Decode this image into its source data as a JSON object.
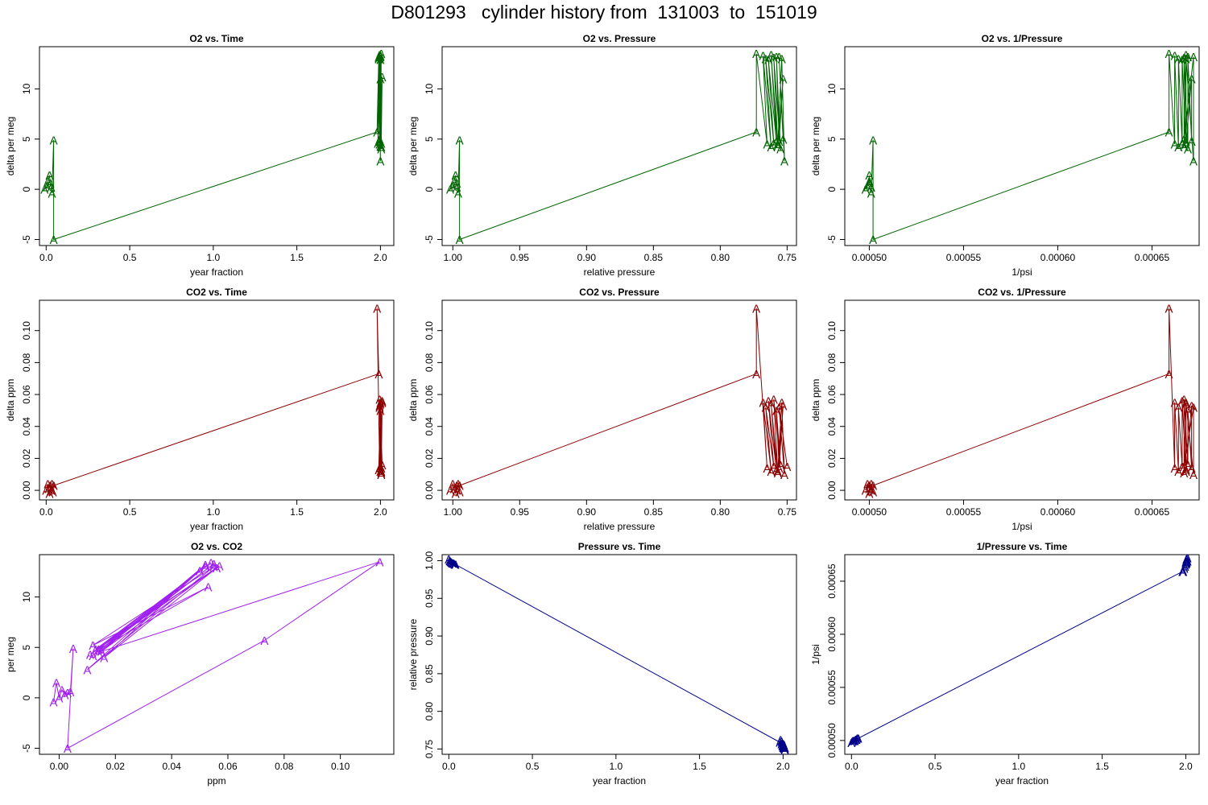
{
  "title": "D801293   cylinder history from  131003  to  151019",
  "colors": {
    "o2": "#006400",
    "co2": "#8b0000",
    "o2co2": "#a020f0",
    "pressure": "#00008b"
  },
  "chart_data": [
    {
      "id": "o2-time",
      "type": "line",
      "title": "O2 vs. Time",
      "xlabel": "year fraction",
      "ylabel": "delta per meg",
      "xlim": [
        -0.04,
        2.08
      ],
      "ylim": [
        -5.6,
        14.2
      ],
      "reverse_x": false,
      "color": "o2",
      "xticks": [
        "0.0",
        "0.5",
        "1.0",
        "1.5",
        "2.0"
      ],
      "yticks": [
        "-5",
        "0",
        "5",
        "10"
      ],
      "marker": "A",
      "series": [
        {
          "x": [
            -0.01,
            0.005,
            0.01,
            0.02,
            0.025,
            0.03,
            0.035,
            0.045,
            0.045,
            1.98,
            1.99,
            1.995,
            2.0,
            2.005,
            1.99,
            1.985,
            2.0,
            1.995,
            2.005,
            2.0,
            1.99,
            2.0,
            2.005,
            1.995,
            2.0,
            1.99,
            2.005,
            2.01,
            1.995,
            2.0
          ],
          "y": [
            0.0,
            0.3,
            0.8,
            1.4,
            0.6,
            0.2,
            -0.4,
            4.9,
            -5.0,
            5.7,
            13.2,
            4.5,
            13.3,
            4.2,
            13.0,
            4.6,
            12.9,
            4.8,
            13.5,
            4.3,
            13.1,
            11.0,
            4.0,
            13.4,
            2.8,
            13.0,
            4.6,
            11.2,
            5.0,
            13.2
          ]
        }
      ]
    },
    {
      "id": "o2-pressure",
      "type": "line",
      "title": "O2 vs. Pressure",
      "xlabel": "relative pressure",
      "ylabel": "delta per meg",
      "xlim": [
        1.008,
        0.743
      ],
      "ylim": [
        -5.6,
        14.2
      ],
      "reverse_x": true,
      "color": "o2",
      "xticks": [
        "1.00",
        "0.95",
        "0.90",
        "0.85",
        "0.80",
        "0.75"
      ],
      "yticks": [
        "-5",
        "0",
        "5",
        "10"
      ],
      "marker": "A",
      "series": [
        {
          "x": [
            1.002,
            1.0,
            0.999,
            0.998,
            0.997,
            0.997,
            0.996,
            0.995,
            0.995,
            0.773,
            0.773,
            0.765,
            0.768,
            0.762,
            0.766,
            0.76,
            0.764,
            0.758,
            0.762,
            0.757,
            0.76,
            0.755,
            0.758,
            0.756,
            0.753,
            0.757,
            0.754,
            0.752,
            0.756,
            0.753
          ],
          "y": [
            0.0,
            0.3,
            0.8,
            1.4,
            0.6,
            0.2,
            -0.4,
            4.9,
            -5.0,
            5.7,
            13.5,
            4.5,
            13.3,
            4.2,
            13.0,
            4.6,
            12.9,
            4.8,
            13.4,
            4.3,
            13.1,
            4.0,
            13.2,
            4.8,
            11.0,
            4.5,
            13.0,
            2.8,
            13.2,
            5.0
          ]
        }
      ]
    },
    {
      "id": "o2-inv-pressure",
      "type": "line",
      "title": "O2 vs. 1/Pressure",
      "xlabel": "1/psi",
      "ylabel": "delta per meg",
      "xlim": [
        0.000487,
        0.000675
      ],
      "ylim": [
        -5.6,
        14.2
      ],
      "reverse_x": false,
      "color": "o2",
      "xticks": [
        "0.00050",
        "0.00055",
        "0.00060",
        "0.00065"
      ],
      "yticks": [
        "-5",
        "0",
        "5",
        "10"
      ],
      "marker": "A",
      "series": [
        {
          "x": [
            0.000498,
            0.000499,
            0.0005,
            0.0005,
            0.0005,
            0.000501,
            0.000501,
            0.000502,
            0.000502,
            0.000659,
            0.000659,
            0.000662,
            0.000662,
            0.000664,
            0.000664,
            0.000666,
            0.000666,
            0.000668,
            0.000668,
            0.000667,
            0.000667,
            0.000669,
            0.000669,
            0.000671,
            0.000671,
            0.000668,
            0.000668,
            0.000672,
            0.000672,
            0.000667
          ],
          "y": [
            0.0,
            0.3,
            0.8,
            1.4,
            0.6,
            0.2,
            -0.4,
            4.9,
            -5.0,
            5.7,
            13.5,
            4.5,
            13.3,
            4.2,
            13.0,
            4.6,
            12.9,
            4.8,
            13.4,
            4.3,
            13.1,
            4.0,
            13.2,
            4.8,
            11.0,
            4.5,
            13.0,
            2.8,
            13.2,
            5.0
          ]
        }
      ]
    },
    {
      "id": "co2-time",
      "type": "line",
      "title": "CO2 vs. Time",
      "xlabel": "year fraction",
      "ylabel": "delta ppm",
      "xlim": [
        -0.04,
        2.08
      ],
      "ylim": [
        -0.006,
        0.119
      ],
      "reverse_x": false,
      "color": "co2",
      "xticks": [
        "0.0",
        "0.5",
        "1.0",
        "1.5",
        "2.0"
      ],
      "yticks": [
        "0.00",
        "0.02",
        "0.04",
        "0.06",
        "0.08",
        "0.10"
      ],
      "marker": "A",
      "series": [
        {
          "x": [
            0.0,
            0.01,
            0.015,
            0.02,
            0.025,
            0.03,
            0.035,
            0.04,
            0.045,
            1.99,
            1.98,
            1.995,
            2.0,
            2.005,
            1.995,
            2.0,
            2.01,
            1.99,
            2.0,
            2.005,
            1.995,
            2.01,
            2.0,
            2.005,
            1.995,
            2.0,
            2.01,
            2.005,
            1.995,
            2.0
          ],
          "y": [
            0.0,
            0.004,
            0.001,
            -0.002,
            0.003,
            0.0,
            0.004,
            -0.001,
            0.003,
            0.073,
            0.114,
            0.014,
            0.055,
            0.012,
            0.052,
            0.015,
            0.056,
            0.013,
            0.054,
            0.011,
            0.057,
            0.016,
            0.05,
            0.014,
            0.053,
            0.012,
            0.055,
            0.01,
            0.052,
            0.015
          ]
        }
      ]
    },
    {
      "id": "co2-pressure",
      "type": "line",
      "title": "CO2 vs. Pressure",
      "xlabel": "relative pressure",
      "ylabel": "delta ppm",
      "xlim": [
        1.008,
        0.743
      ],
      "ylim": [
        -0.006,
        0.119
      ],
      "reverse_x": true,
      "color": "co2",
      "xticks": [
        "1.00",
        "0.95",
        "0.90",
        "0.85",
        "0.80",
        "0.75"
      ],
      "yticks": [
        "0.00",
        "0.02",
        "0.04",
        "0.06",
        "0.08",
        "0.10"
      ],
      "marker": "A",
      "series": [
        {
          "x": [
            1.002,
            1.0,
            0.999,
            0.998,
            0.997,
            0.997,
            0.996,
            0.995,
            0.995,
            0.773,
            0.773,
            0.765,
            0.768,
            0.762,
            0.766,
            0.76,
            0.764,
            0.758,
            0.762,
            0.757,
            0.76,
            0.755,
            0.758,
            0.756,
            0.753,
            0.757,
            0.754,
            0.752,
            0.756,
            0.75
          ],
          "y": [
            0.0,
            0.004,
            0.001,
            -0.002,
            0.003,
            0.0,
            0.004,
            -0.001,
            0.003,
            0.073,
            0.114,
            0.014,
            0.055,
            0.012,
            0.052,
            0.015,
            0.056,
            0.013,
            0.054,
            0.011,
            0.057,
            0.016,
            0.05,
            0.014,
            0.053,
            0.012,
            0.055,
            0.01,
            0.052,
            0.015
          ]
        }
      ]
    },
    {
      "id": "co2-inv-pressure",
      "type": "line",
      "title": "CO2 vs. 1/Pressure",
      "xlabel": "1/psi",
      "ylabel": "delta ppm",
      "xlim": [
        0.000487,
        0.000675
      ],
      "ylim": [
        -0.006,
        0.119
      ],
      "reverse_x": false,
      "color": "co2",
      "xticks": [
        "0.00050",
        "0.00055",
        "0.00060",
        "0.00065"
      ],
      "yticks": [
        "0.00",
        "0.02",
        "0.04",
        "0.06",
        "0.08",
        "0.10"
      ],
      "marker": "A",
      "series": [
        {
          "x": [
            0.000498,
            0.000499,
            0.0005,
            0.0005,
            0.0005,
            0.000501,
            0.000501,
            0.000502,
            0.000502,
            0.000659,
            0.000659,
            0.000662,
            0.000662,
            0.000664,
            0.000664,
            0.000666,
            0.000666,
            0.000668,
            0.000668,
            0.000667,
            0.000667,
            0.000669,
            0.000669,
            0.000671,
            0.000671,
            0.000668,
            0.000668,
            0.000672,
            0.000672,
            0.000667
          ],
          "y": [
            0.0,
            0.004,
            0.001,
            -0.002,
            0.003,
            0.0,
            0.004,
            -0.001,
            0.003,
            0.073,
            0.114,
            0.014,
            0.055,
            0.012,
            0.052,
            0.015,
            0.056,
            0.013,
            0.054,
            0.011,
            0.057,
            0.016,
            0.05,
            0.014,
            0.053,
            0.012,
            0.055,
            0.01,
            0.052,
            0.015
          ]
        }
      ]
    },
    {
      "id": "o2-co2",
      "type": "line",
      "title": "O2 vs. CO2",
      "xlabel": "ppm",
      "ylabel": "per meg",
      "xlim": [
        -0.007,
        0.119
      ],
      "ylim": [
        -5.6,
        14.2
      ],
      "reverse_x": false,
      "color": "o2co2",
      "xticks": [
        "0.00",
        "0.02",
        "0.04",
        "0.06",
        "0.08",
        "0.10"
      ],
      "yticks": [
        "-5",
        "0",
        "5",
        "10"
      ],
      "marker": "A",
      "series": [
        {
          "x": [
            -0.002,
            -0.001,
            0.0,
            0.001,
            0.002,
            0.003,
            0.004,
            0.005,
            0.003,
            0.073,
            0.114,
            0.014,
            0.055,
            0.012,
            0.052,
            0.015,
            0.056,
            0.013,
            0.054,
            0.011,
            0.057,
            0.016,
            0.05,
            0.014,
            0.053,
            0.012,
            0.055,
            0.01,
            0.052,
            0.015
          ],
          "y": [
            -0.4,
            1.5,
            0.0,
            0.8,
            0.3,
            0.5,
            0.6,
            4.9,
            -5.0,
            5.7,
            13.5,
            4.5,
            13.3,
            4.2,
            13.0,
            4.6,
            12.9,
            4.8,
            13.4,
            4.3,
            13.1,
            4.0,
            12.6,
            4.8,
            11.0,
            5.2,
            13.0,
            2.8,
            13.2,
            4.6
          ]
        }
      ]
    },
    {
      "id": "pressure-time",
      "type": "line",
      "title": "Pressure vs. Time",
      "xlabel": "year fraction",
      "ylabel": "relative pressure",
      "xlim": [
        -0.04,
        2.08
      ],
      "ylim": [
        0.743,
        1.008
      ],
      "reverse_x": false,
      "color": "pressure",
      "xticks": [
        "0.0",
        "0.5",
        "1.0",
        "1.5",
        "2.0"
      ],
      "yticks": [
        "0.75",
        "0.80",
        "0.85",
        "0.90",
        "0.95",
        "1.00"
      ],
      "marker": "A",
      "series": [
        {
          "x": [
            0.0,
            0.005,
            0.01,
            0.015,
            0.02,
            0.025,
            0.03,
            0.035,
            0.04,
            1.98,
            1.985,
            1.99,
            1.99,
            1.995,
            1.995,
            2.0,
            2.0,
            2.005,
            2.005,
            2.0,
            2.0,
            2.01,
            2.01,
            2.005,
            2.005,
            2.0,
            2.0,
            2.01,
            2.01,
            2.005
          ],
          "y": [
            1.002,
            1.0,
            0.999,
            0.998,
            0.997,
            0.997,
            0.996,
            0.995,
            0.995,
            0.759,
            0.762,
            0.76,
            0.757,
            0.758,
            0.755,
            0.756,
            0.753,
            0.754,
            0.751,
            0.757,
            0.754,
            0.752,
            0.75,
            0.756,
            0.753,
            0.755,
            0.752,
            0.751,
            0.749,
            0.754
          ]
        }
      ]
    },
    {
      "id": "inv-pressure-time",
      "type": "line",
      "title": "1/Pressure vs. Time",
      "xlabel": "year fraction",
      "ylabel": "1/psi",
      "xlim": [
        -0.04,
        2.08
      ],
      "ylim": [
        0.000487,
        0.000675
      ],
      "reverse_x": false,
      "color": "pressure",
      "xticks": [
        "0.0",
        "0.5",
        "1.0",
        "1.5",
        "2.0"
      ],
      "yticks": [
        "0.00050",
        "0.00055",
        "0.00060",
        "0.00065"
      ],
      "marker": "A",
      "series": [
        {
          "x": [
            0.0,
            0.005,
            0.01,
            0.015,
            0.02,
            0.025,
            0.03,
            0.035,
            0.04,
            1.98,
            1.985,
            1.99,
            1.99,
            1.995,
            1.995,
            2.0,
            2.0,
            2.005,
            2.005,
            2.0,
            2.0,
            2.01,
            2.01,
            2.005,
            2.005,
            2.0,
            2.0,
            2.01,
            2.01,
            2.005
          ],
          "y": [
            0.000498,
            0.000499,
            0.0005,
            0.0005,
            0.0005,
            0.000501,
            0.000501,
            0.000502,
            0.000502,
            0.000659,
            0.000659,
            0.000662,
            0.000662,
            0.000664,
            0.000664,
            0.000666,
            0.000666,
            0.000668,
            0.000668,
            0.000667,
            0.000667,
            0.000669,
            0.000669,
            0.000671,
            0.000671,
            0.000668,
            0.000668,
            0.000672,
            0.000672,
            0.000667
          ]
        }
      ]
    }
  ]
}
